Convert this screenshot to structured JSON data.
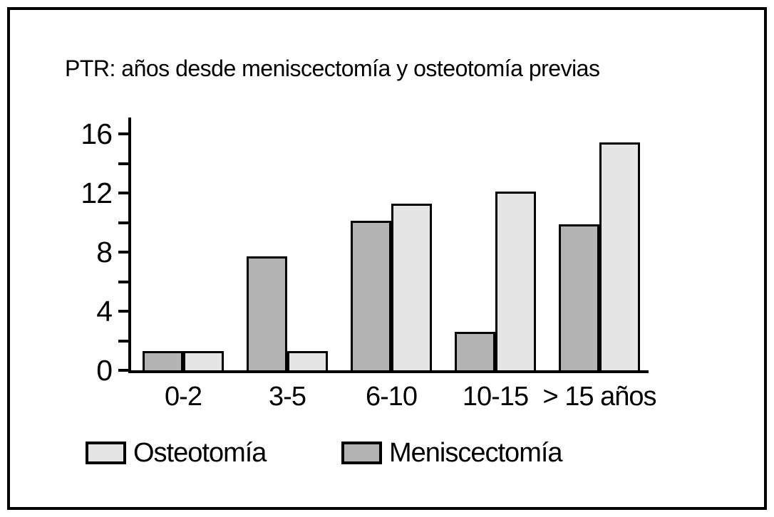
{
  "title": "PTR: años desde meniscectomía y osteotomía previas",
  "colors": {
    "osteotomia": "#e5e5e5",
    "meniscectomia": "#b3b3b3",
    "axis": "#000000",
    "background": "#ffffff"
  },
  "chart_data": {
    "type": "bar",
    "title": "PTR: años desde meniscectomía y osteotomía previas",
    "categories": [
      "0-2",
      "3-5",
      "6-10",
      "10-15",
      "> 15 años"
    ],
    "xlabel": "",
    "ylabel": "",
    "ylim": [
      0,
      16
    ],
    "y_major_ticks": [
      0,
      4,
      8,
      12,
      16
    ],
    "y_minor_ticks": [
      2,
      6,
      10,
      14
    ],
    "grid": false,
    "legend_position": "bottom",
    "series": [
      {
        "name": "Meniscectomía",
        "key": "meniscectomia",
        "color": "#b3b3b3",
        "values": [
          1.3,
          7.7,
          10.1,
          2.6,
          9.9
        ]
      },
      {
        "name": "Osteotomía",
        "key": "osteotomia",
        "color": "#e5e5e5",
        "values": [
          1.3,
          1.3,
          11.3,
          12.1,
          15.4
        ]
      }
    ],
    "legend": [
      {
        "label": "Osteotomía",
        "key": "osteotomia",
        "color": "#e5e5e5"
      },
      {
        "label": "Meniscectomía",
        "key": "meniscectomia",
        "color": "#b3b3b3"
      }
    ]
  }
}
